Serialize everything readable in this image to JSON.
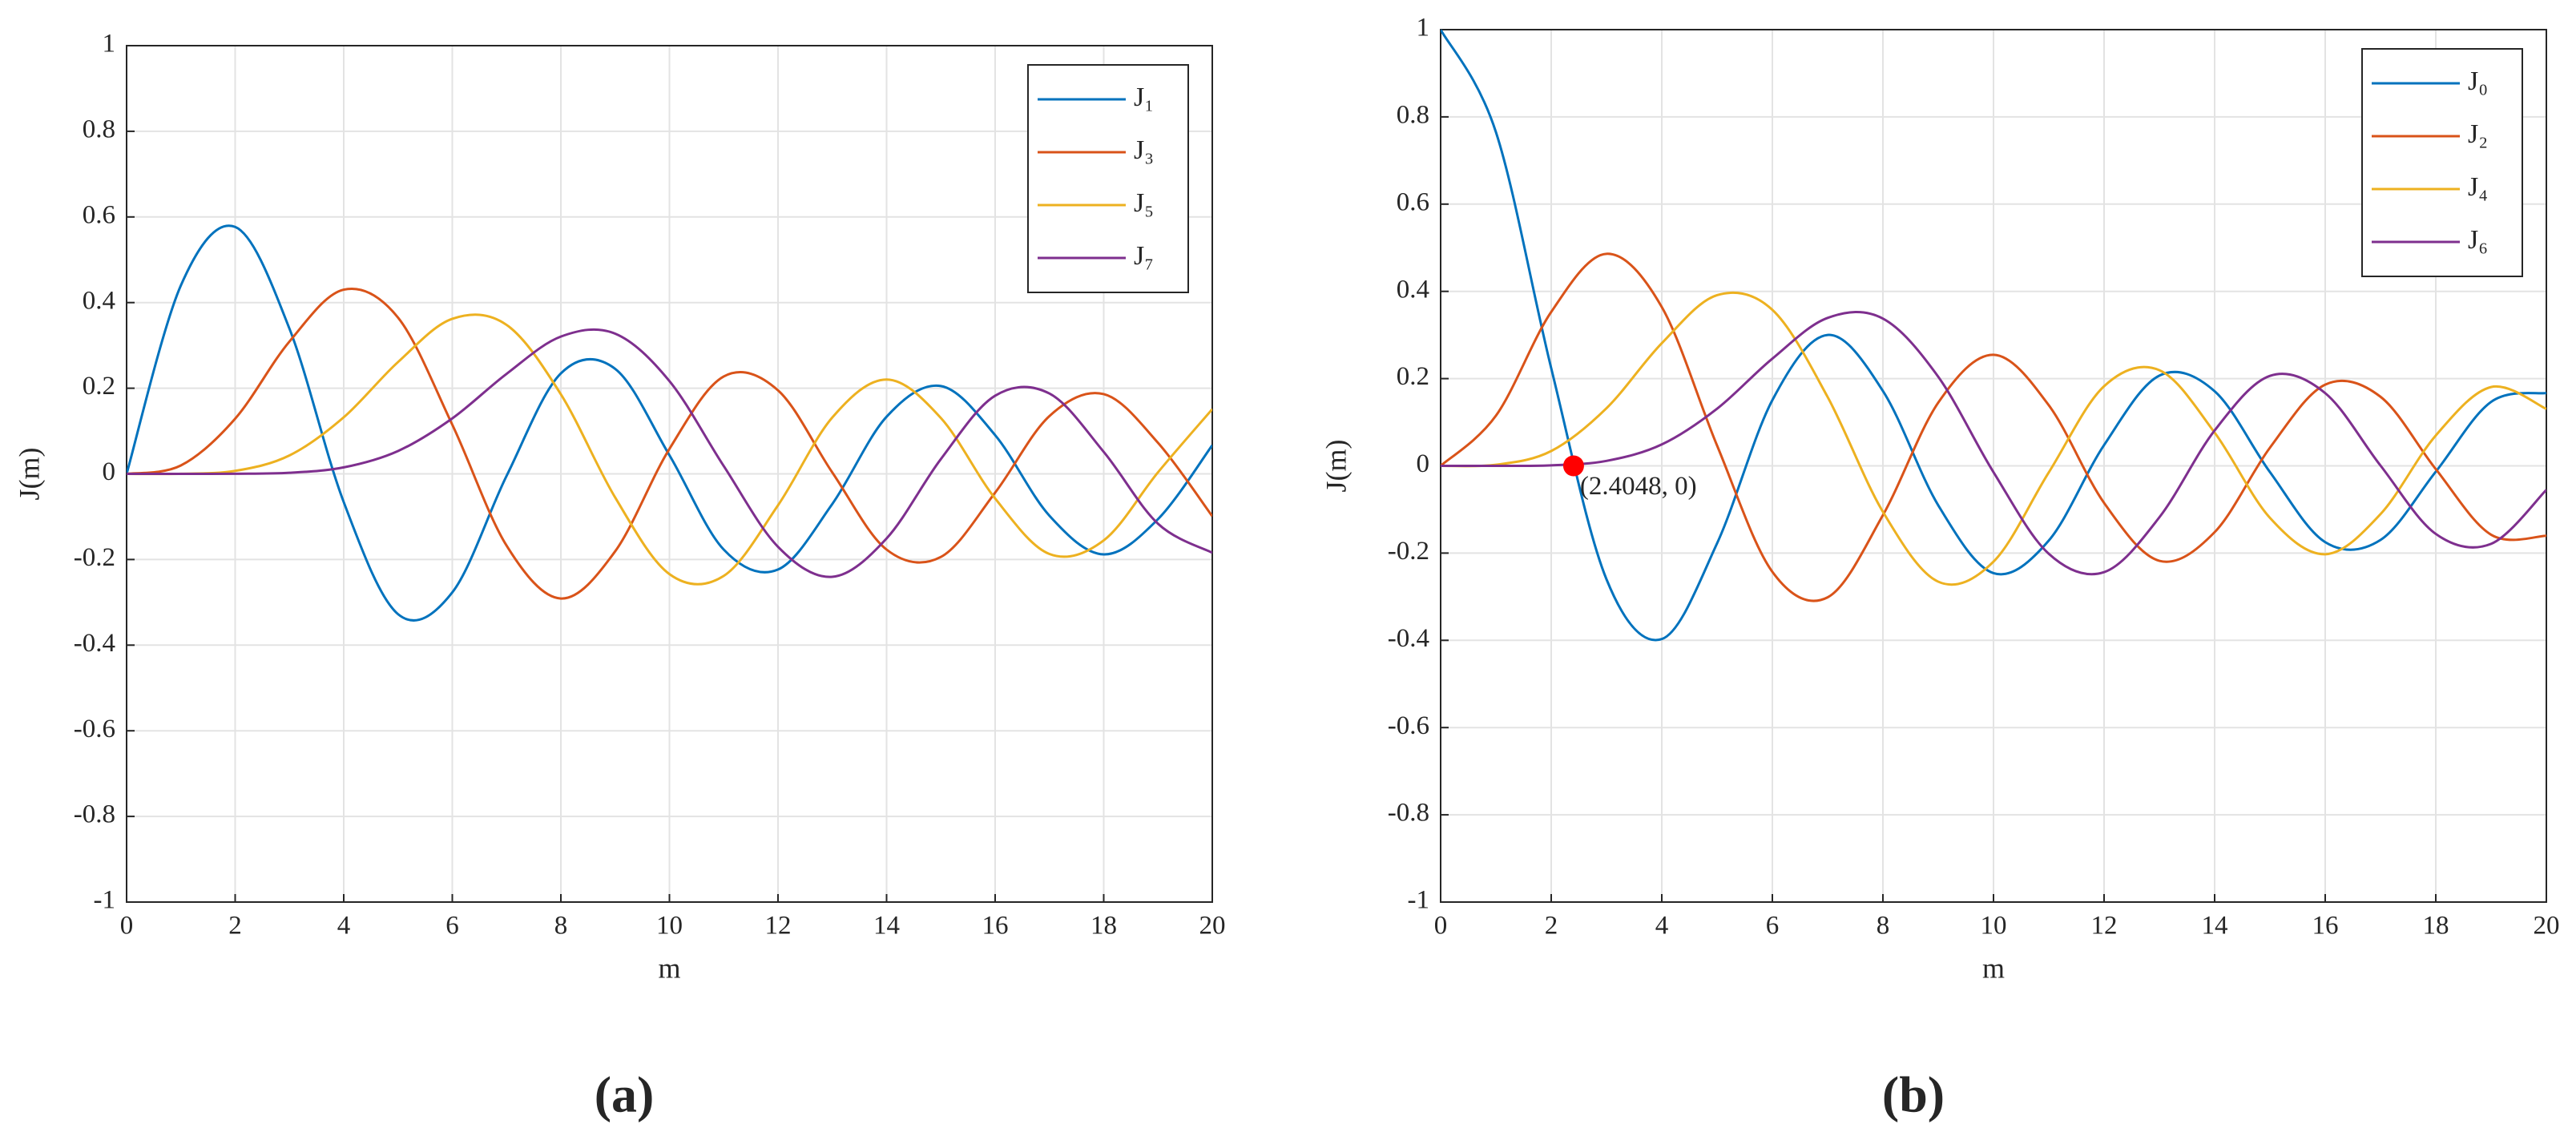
{
  "chart_data": [
    {
      "type": "line",
      "panel_label": "(a)",
      "xlabel": "m",
      "ylabel": "J(m)",
      "x": [
        0,
        1,
        2,
        3,
        4,
        5,
        6,
        7,
        8,
        9,
        10,
        11,
        12,
        13,
        14,
        15,
        16,
        17,
        18,
        19,
        20
      ],
      "series": [
        {
          "name": "J₁",
          "color": "#0072BD",
          "values": [
            0,
            0.4401,
            0.5767,
            0.3391,
            -0.066,
            -0.3276,
            -0.2767,
            -0.0047,
            0.2346,
            0.2453,
            0.0435,
            -0.1768,
            -0.2234,
            -0.0703,
            0.1334,
            0.2051,
            0.0904,
            -0.0977,
            -0.188,
            -0.1057,
            0.0668
          ]
        },
        {
          "name": "J₃",
          "color": "#D95319",
          "values": [
            0,
            0.0196,
            0.1289,
            0.3091,
            0.4302,
            0.3649,
            0.1148,
            -0.1676,
            -0.2911,
            -0.1809,
            0.0584,
            0.2274,
            0.1951,
            0.0033,
            -0.1768,
            -0.194,
            -0.0438,
            0.135,
            0.1863,
            0.0725,
            -0.0989
          ]
        },
        {
          "name": "J₅",
          "color": "#EDB120",
          "values": [
            0,
            0.00025,
            0.007,
            0.043,
            0.1321,
            0.2611,
            0.3621,
            0.3479,
            0.1858,
            -0.0551,
            -0.2341,
            -0.2383,
            -0.0734,
            0.1316,
            0.2204,
            0.1305,
            -0.0575,
            -0.1871,
            -0.1554,
            0.0036,
            0.1512
          ]
        },
        {
          "name": "J₇",
          "color": "#7E2F8E",
          "values": [
            0,
            0,
            0.0002,
            0.0025,
            0.0152,
            0.0534,
            0.1296,
            0.2336,
            0.3206,
            0.3275,
            0.2167,
            0.0184,
            -0.1703,
            -0.2405,
            -0.1508,
            0.0345,
            0.1825,
            0.1876,
            0.0514,
            -0.1165,
            -0.1843
          ]
        }
      ],
      "xlim": [
        0,
        20
      ],
      "ylim": [
        -1,
        1
      ],
      "xticks": [
        0,
        2,
        4,
        6,
        8,
        10,
        12,
        14,
        16,
        18,
        20
      ],
      "yticks": [
        -1,
        -0.8,
        -0.6,
        -0.4,
        -0.2,
        0,
        0.2,
        0.4,
        0.6,
        0.8,
        1
      ],
      "grid": true,
      "legend": "upper right"
    },
    {
      "type": "line",
      "panel_label": "(b)",
      "xlabel": "m",
      "ylabel": "J(m)",
      "x": [
        0,
        1,
        2,
        3,
        4,
        5,
        6,
        7,
        8,
        9,
        10,
        11,
        12,
        13,
        14,
        15,
        16,
        17,
        18,
        19,
        20
      ],
      "series": [
        {
          "name": "J₀",
          "color": "#0072BD",
          "values": [
            1,
            0.7652,
            0.2239,
            -0.2601,
            -0.3971,
            -0.1776,
            0.1506,
            0.3001,
            0.1717,
            -0.0903,
            -0.2459,
            -0.1712,
            0.0477,
            0.2069,
            0.1711,
            -0.0142,
            -0.1749,
            -0.1699,
            -0.0134,
            0.1466,
            0.167
          ]
        },
        {
          "name": "J₂",
          "color": "#D95319",
          "values": [
            0,
            0.1149,
            0.3528,
            0.4861,
            0.3641,
            0.0466,
            -0.2429,
            -0.3014,
            -0.113,
            0.1448,
            0.2546,
            0.139,
            -0.0849,
            -0.2177,
            -0.152,
            0.0416,
            0.1862,
            0.1584,
            -0.0075,
            -0.1578,
            -0.1603
          ]
        },
        {
          "name": "J₄",
          "color": "#EDB120",
          "values": [
            0,
            0.0025,
            0.034,
            0.1321,
            0.2811,
            0.3912,
            0.3577,
            0.1578,
            -0.1054,
            -0.2655,
            -0.2196,
            -0.015,
            0.1825,
            0.2193,
            0.0762,
            -0.1192,
            -0.2026,
            -0.1107,
            0.0696,
            0.1807,
            0.1306
          ]
        },
        {
          "name": "J₆",
          "color": "#7E2F8E",
          "values": [
            0,
            2e-05,
            0.0012,
            0.0114,
            0.0491,
            0.131,
            0.2458,
            0.3392,
            0.3376,
            0.2043,
            -0.0145,
            -0.2016,
            -0.2437,
            -0.118,
            0.0812,
            0.2062,
            0.1667,
            0.0007,
            -0.156,
            -0.1788,
            -0.0551
          ]
        }
      ],
      "annotation": {
        "x": 2.4048,
        "y": 0,
        "label": "(2.4048, 0)",
        "color": "#ff0000"
      },
      "xlim": [
        0,
        20
      ],
      "ylim": [
        -1,
        1
      ],
      "xticks": [
        0,
        2,
        4,
        6,
        8,
        10,
        12,
        14,
        16,
        18,
        20
      ],
      "yticks": [
        -1,
        -0.8,
        -0.6,
        -0.4,
        -0.2,
        0,
        0.2,
        0.4,
        0.6,
        0.8,
        1
      ],
      "grid": true,
      "legend": "upper right"
    }
  ]
}
